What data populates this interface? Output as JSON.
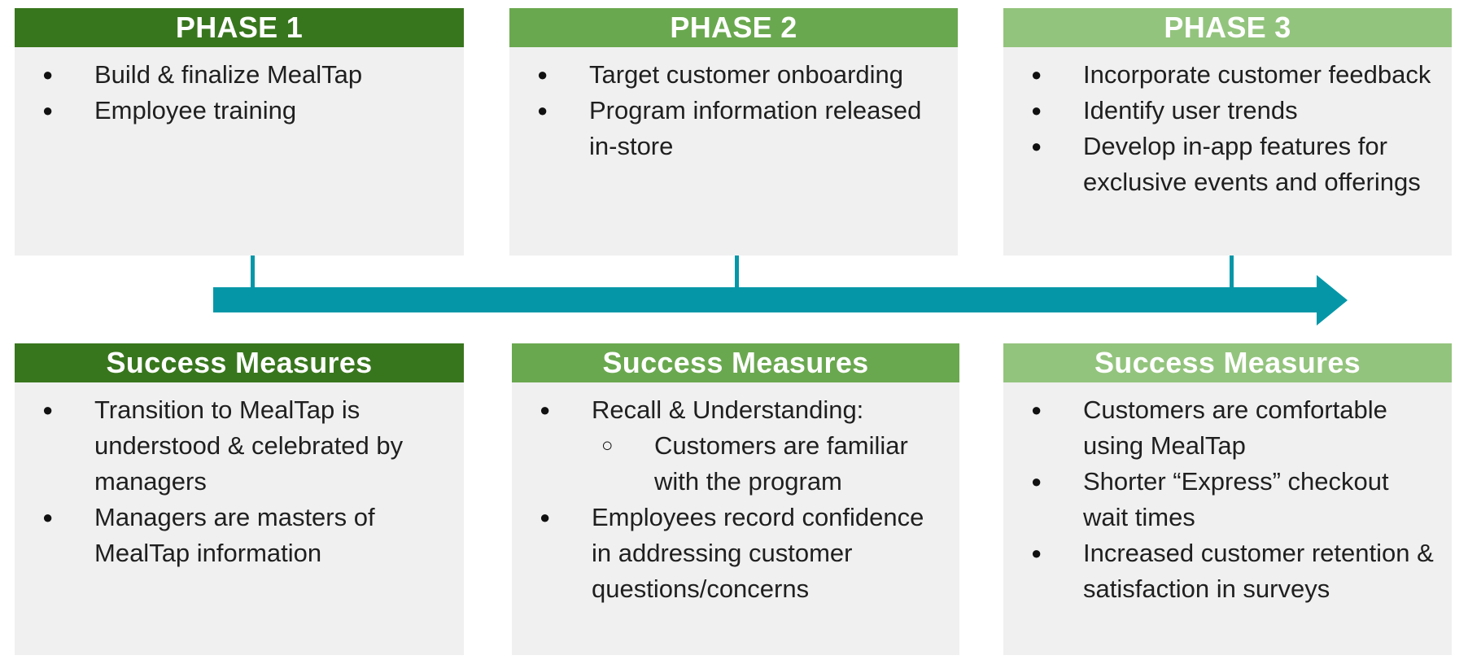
{
  "colors": {
    "phase1": "#38761d",
    "phase2": "#6aa84f",
    "phase3": "#93c47d",
    "arrow": "#0597a8",
    "card_bg": "#f0f0f0"
  },
  "phases": [
    {
      "title": "PHASE 1",
      "items": [
        {
          "text": "Build & finalize MealTap"
        },
        {
          "text": "Employee training"
        }
      ]
    },
    {
      "title": "PHASE 2",
      "items": [
        {
          "text": "Target customer onboarding"
        },
        {
          "text": "Program information released in-store"
        }
      ]
    },
    {
      "title": "PHASE 3",
      "items": [
        {
          "text": "Incorporate customer feedback"
        },
        {
          "text": "Identify user trends"
        },
        {
          "text": "Develop in-app features for exclusive events and offerings"
        }
      ]
    }
  ],
  "measures": [
    {
      "title": "Success Measures",
      "items": [
        {
          "text": "Transition to MealTap is understood & celebrated by managers"
        },
        {
          "text": "Managers are masters of MealTap information"
        }
      ]
    },
    {
      "title": "Success Measures",
      "items": [
        {
          "text": "Recall & Understanding:",
          "sub": [
            "Customers are familiar with the program"
          ]
        },
        {
          "text": "Employees record confidence in addressing customer questions/concerns"
        }
      ]
    },
    {
      "title": "Success Measures",
      "items": [
        {
          "text": "Customers are comfortable using MealTap"
        },
        {
          "text": "Shorter “Express” checkout wait times"
        },
        {
          "text": "Increased customer retention & satisfaction in surveys"
        }
      ]
    }
  ]
}
